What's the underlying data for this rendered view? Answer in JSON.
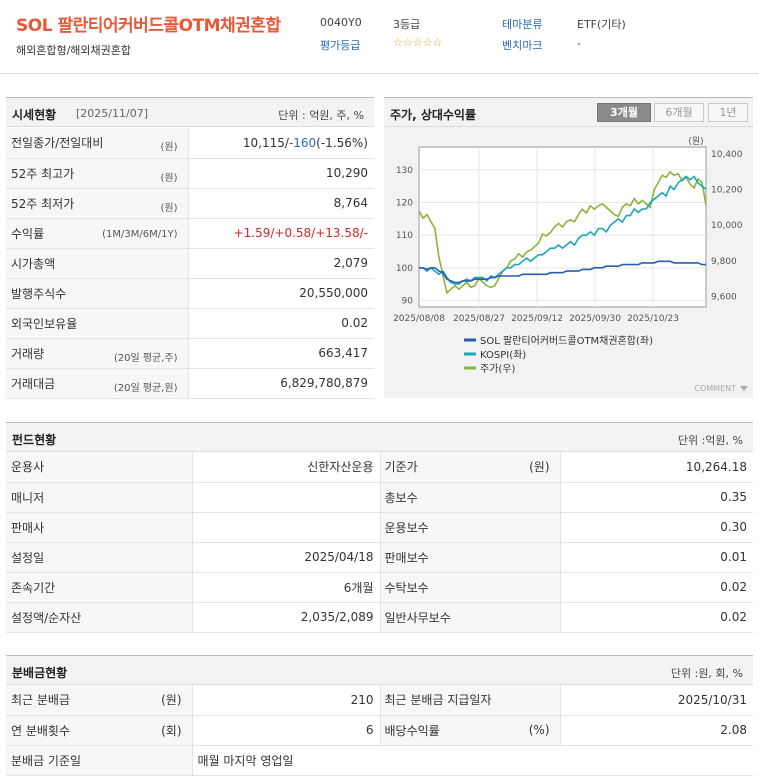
{
  "header": {
    "title": "SOL 팔란티어커버드콜OTM채권혼합",
    "subtitle": "해외혼합형/해외채권혼합",
    "code": "0040Y0",
    "grade_value": "3등급",
    "rating_label": "평가등급",
    "rating_stars": "☆☆☆☆☆",
    "theme_label": "테마분류",
    "theme_value": "ETF(기타)",
    "benchmark_label": "벤치마크",
    "benchmark_value": "-"
  },
  "price": {
    "title": "시세현황",
    "date": "[2025/11/07]",
    "unit": "단위 : 억원, 주, %",
    "rows": [
      {
        "label": "전일종가/전일대비",
        "unit": "(원)",
        "v1": "10,115",
        "v2": "/",
        "v3": "-160",
        "v4": "(-1.56%)"
      },
      {
        "label": "52주 최고가",
        "unit": "(원)",
        "value": "10,290"
      },
      {
        "label": "52주 최저가",
        "unit": "(원)",
        "value": "8,764"
      },
      {
        "label": "수익률",
        "unit": "(1M/3M/6M/1Y)",
        "value": "+1.59/+0.58/+13.58/-"
      },
      {
        "label": "시가총액",
        "unit": "",
        "value": "2,079"
      },
      {
        "label": "발행주식수",
        "unit": "",
        "value": "20,550,000"
      },
      {
        "label": "외국인보유율",
        "unit": "",
        "value": "0.02"
      },
      {
        "label": "거래량",
        "unit": "(20일 평균,주)",
        "value": "663,417"
      },
      {
        "label": "거래대금",
        "unit": "(20일 평균,원)",
        "value": "6,829,780,879"
      }
    ]
  },
  "chart_panel": {
    "title": "주가, 상대수익률",
    "tabs": [
      "3개월",
      "6개월",
      "1년"
    ],
    "comment": "COMMENT"
  },
  "chart_data": {
    "type": "line",
    "x_ticks": [
      "2025/08/08",
      "2025/08/27",
      "2025/09/12",
      "2025/09/30",
      "2025/10/23"
    ],
    "y_left_ticks": [
      "90",
      "100",
      "110",
      "120",
      "130"
    ],
    "y_right_ticks": [
      "9,600",
      "9,800",
      "10,000",
      "10,200",
      "10,400"
    ],
    "y_right_unit": "(원)",
    "ylim_left": [
      88,
      137
    ],
    "ylim_right": [
      9540,
      10440
    ],
    "series": [
      {
        "name": "SOL 팔란티어커버드콜OTM채권혼합(좌)",
        "color": "#2a5db0",
        "axis": "left",
        "values": [
          100,
          100,
          99.5,
          100,
          100,
          99,
          98.5,
          96.5,
          96,
          95.5,
          95.5,
          96,
          96,
          96,
          96.5,
          96.5,
          96.5,
          96.5,
          97,
          97,
          97.5,
          97.5,
          97.5,
          97.5,
          97.5,
          97.5,
          98,
          98,
          98,
          98,
          98,
          98,
          98,
          98.5,
          98.5,
          98.5,
          98.5,
          99,
          99,
          99,
          99,
          99.5,
          99.5,
          99.5,
          100,
          100,
          100,
          100.5,
          100.5,
          100.5,
          100.5,
          101,
          101,
          101,
          101,
          101,
          101.5,
          101.5,
          101.5,
          101.5,
          102,
          102,
          102,
          102,
          101.5,
          101.5,
          101.5,
          101.5,
          101.5,
          101.5,
          101.5,
          101,
          101
        ]
      },
      {
        "name": "KOSPI(좌)",
        "color": "#1aa8b8",
        "axis": "left",
        "values": [
          100,
          100,
          99,
          100,
          99,
          98,
          99,
          97,
          95.5,
          95,
          95,
          96,
          96.5,
          96,
          97,
          97,
          97,
          96,
          97.5,
          97,
          98,
          99,
          100,
          100,
          101,
          101,
          102,
          103,
          102,
          103,
          104,
          104,
          105,
          106,
          106,
          107,
          106,
          107,
          108,
          107,
          109,
          110,
          110,
          111,
          110,
          112,
          112,
          111,
          113,
          114,
          115,
          114,
          116,
          116,
          118,
          117,
          118,
          118,
          120,
          121,
          122,
          123,
          122,
          125,
          124,
          126,
          127,
          128,
          127,
          128,
          126,
          125,
          124
        ]
      },
      {
        "name": "주가(우)",
        "color": "#8ab43a",
        "axis": "right",
        "values": [
          10080,
          10040,
          10060,
          10020,
          9980,
          9820,
          9720,
          9620,
          9640,
          9660,
          9640,
          9660,
          9680,
          9650,
          9660,
          9700,
          9680,
          9660,
          9650,
          9660,
          9700,
          9740,
          9760,
          9800,
          9810,
          9840,
          9820,
          9850,
          9860,
          9880,
          9900,
          9950,
          9940,
          9960,
          9990,
          10010,
          9990,
          10020,
          10030,
          10020,
          10060,
          10090,
          10070,
          10110,
          10090,
          10110,
          10120,
          10100,
          10080,
          10060,
          10050,
          10100,
          10120,
          10110,
          10150,
          10120,
          10140,
          10120,
          10100,
          10200,
          10240,
          10280,
          10270,
          10300,
          10280,
          10290,
          10250,
          10270,
          10230,
          10210,
          10260,
          10240,
          10115
        ]
      }
    ]
  },
  "fund": {
    "title": "펀드현황",
    "unit": "단위 :억원, %",
    "left": [
      {
        "label": "운용사",
        "value": "신한자산운용"
      },
      {
        "label": "매니저",
        "value": ""
      },
      {
        "label": "판매사",
        "value": ""
      },
      {
        "label": "설정일",
        "value": "2025/04/18"
      },
      {
        "label": "존속기간",
        "value": "6개월"
      },
      {
        "label": "설정액/순자산",
        "value": "2,035/2,089"
      }
    ],
    "right": [
      {
        "label": "기준가",
        "unit": "(원)",
        "value": "10,264.18"
      },
      {
        "label": "총보수",
        "unit": "",
        "value": "0.35"
      },
      {
        "label": "운용보수",
        "unit": "",
        "value": "0.30"
      },
      {
        "label": "판매보수",
        "unit": "",
        "value": "0.01"
      },
      {
        "label": "수탁보수",
        "unit": "",
        "value": "0.02"
      },
      {
        "label": "일반사무보수",
        "unit": "",
        "value": "0.02"
      }
    ]
  },
  "dividend": {
    "title": "분배금현황",
    "unit": "단위 :원, 회, %",
    "rows": [
      {
        "l_label": "최근 분배금",
        "l_unit": "(원)",
        "l_value": "210",
        "r_label": "최근 분배금 지급일자",
        "r_unit": "",
        "r_value": "2025/10/31"
      },
      {
        "l_label": "연 분배횟수",
        "l_unit": "(회)",
        "l_value": "6",
        "r_label": "배당수익률",
        "r_unit": "(%)",
        "r_value": "2.08"
      }
    ],
    "base_label": "분배금 기준일",
    "base_value": "매월 마지막 영업일"
  }
}
